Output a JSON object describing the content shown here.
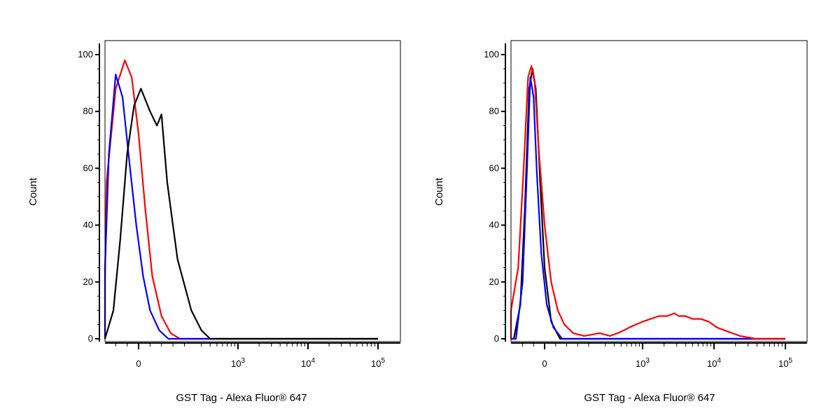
{
  "chart_data": [
    {
      "type": "line",
      "xlabel": "GST Tag - Alexa Fluor® 647",
      "ylabel": "Count",
      "ylim": [
        0,
        100
      ],
      "y_ticks": [
        "0",
        "20",
        "40",
        "60",
        "80",
        "100"
      ],
      "x_tick_labels": [
        {
          "base": "0",
          "exp": "",
          "value": 0
        },
        {
          "base": "10",
          "exp": "3",
          "value": 1000
        },
        {
          "base": "10",
          "exp": "4",
          "value": 10000
        },
        {
          "base": "10",
          "exp": "5",
          "value": 100000
        }
      ],
      "grid": false,
      "series": [
        {
          "color": "#ff0000",
          "points": [
            [
              -300,
              0
            ],
            [
              -230,
              3
            ],
            [
              -180,
              20
            ],
            [
              -140,
              55
            ],
            [
              -100,
              88
            ],
            [
              -60,
              98
            ],
            [
              -30,
              92
            ],
            [
              0,
              72
            ],
            [
              30,
              45
            ],
            [
              60,
              22
            ],
            [
              100,
              8
            ],
            [
              140,
              2
            ],
            [
              180,
              0
            ],
            [
              100000,
              0
            ]
          ]
        },
        {
          "color": "#0000ff",
          "points": [
            [
              -300,
              0
            ],
            [
              -220,
              3
            ],
            [
              -170,
              25
            ],
            [
              -130,
              65
            ],
            [
              -100,
              93
            ],
            [
              -70,
              85
            ],
            [
              -40,
              62
            ],
            [
              -10,
              40
            ],
            [
              20,
              22
            ],
            [
              50,
              10
            ],
            [
              90,
              3
            ],
            [
              130,
              0
            ],
            [
              100000,
              0
            ]
          ]
        },
        {
          "color": "#000000",
          "points": [
            [
              -300,
              0
            ],
            [
              -150,
              0
            ],
            [
              -110,
              10
            ],
            [
              -80,
              35
            ],
            [
              -50,
              65
            ],
            [
              -20,
              82
            ],
            [
              10,
              88
            ],
            [
              50,
              80
            ],
            [
              80,
              75
            ],
            [
              100,
              79
            ],
            [
              125,
              55
            ],
            [
              170,
              28
            ],
            [
              230,
              10
            ],
            [
              300,
              3
            ],
            [
              400,
              0
            ],
            [
              100000,
              0
            ]
          ]
        }
      ]
    },
    {
      "type": "line",
      "xlabel": "GST Tag - Alexa Fluor® 647",
      "ylabel": "Count",
      "ylim": [
        0,
        100
      ],
      "y_ticks": [
        "0",
        "20",
        "40",
        "60",
        "80",
        "100"
      ],
      "x_tick_labels": [
        {
          "base": "0",
          "exp": "",
          "value": 0
        },
        {
          "base": "10",
          "exp": "3",
          "value": 1000
        },
        {
          "base": "10",
          "exp": "4",
          "value": 10000
        },
        {
          "base": "10",
          "exp": "5",
          "value": 100000
        }
      ],
      "grid": false,
      "series": [
        {
          "color": "#000000",
          "points": [
            [
              -300,
              0
            ],
            [
              -140,
              0
            ],
            [
              -110,
              12
            ],
            [
              -90,
              45
            ],
            [
              -70,
              88
            ],
            [
              -55,
              95
            ],
            [
              -40,
              88
            ],
            [
              -20,
              55
            ],
            [
              0,
              25
            ],
            [
              30,
              6
            ],
            [
              70,
              0
            ],
            [
              100000,
              0
            ]
          ]
        },
        {
          "color": "#0000ff",
          "points": [
            [
              -300,
              0
            ],
            [
              -130,
              0
            ],
            [
              -100,
              20
            ],
            [
              -80,
              60
            ],
            [
              -65,
              92
            ],
            [
              -50,
              85
            ],
            [
              -35,
              58
            ],
            [
              -15,
              30
            ],
            [
              10,
              12
            ],
            [
              40,
              4
            ],
            [
              80,
              0
            ],
            [
              100000,
              0
            ]
          ]
        },
        {
          "color": "#ff0000",
          "points": [
            [
              -300,
              0
            ],
            [
              -250,
              1
            ],
            [
              -200,
              4
            ],
            [
              -160,
              10
            ],
            [
              -120,
              25
            ],
            [
              -95,
              60
            ],
            [
              -75,
              92
            ],
            [
              -60,
              96
            ],
            [
              -45,
              90
            ],
            [
              -25,
              65
            ],
            [
              0,
              40
            ],
            [
              30,
              20
            ],
            [
              60,
              10
            ],
            [
              90,
              5
            ],
            [
              130,
              2
            ],
            [
              180,
              1
            ],
            [
              250,
              2
            ],
            [
              350,
              1
            ],
            [
              450,
              2
            ],
            [
              550,
              3
            ],
            [
              650,
              4
            ],
            [
              800,
              5
            ],
            [
              1000,
              6
            ],
            [
              1300,
              7
            ],
            [
              1700,
              8
            ],
            [
              2200,
              8
            ],
            [
              2800,
              9
            ],
            [
              3200,
              8
            ],
            [
              4000,
              8
            ],
            [
              5000,
              7
            ],
            [
              6500,
              7
            ],
            [
              8500,
              6
            ],
            [
              11000,
              4
            ],
            [
              14000,
              3
            ],
            [
              18000,
              2
            ],
            [
              23000,
              1
            ],
            [
              30000,
              0.5
            ],
            [
              38000,
              0
            ],
            [
              100000,
              0
            ]
          ]
        }
      ]
    }
  ]
}
